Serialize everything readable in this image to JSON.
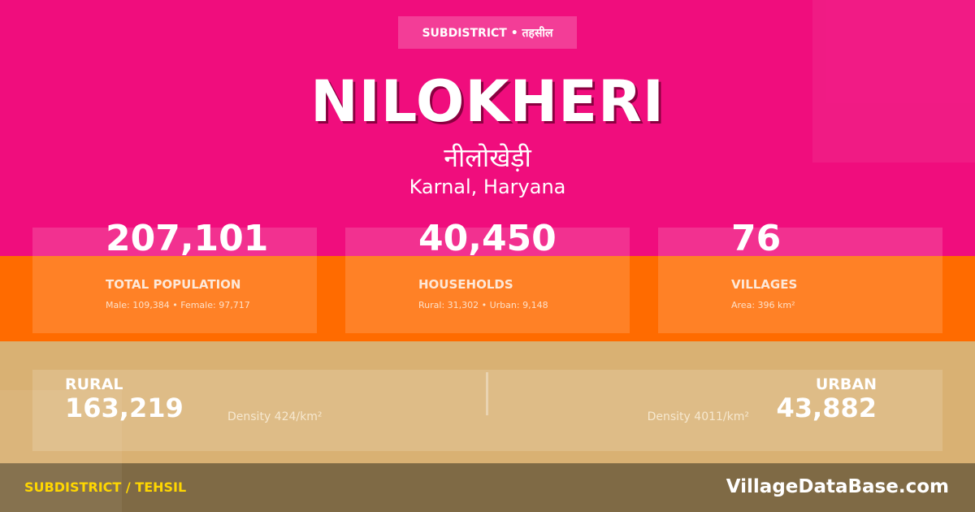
{
  "badge": "SUBDISTRICT • तहसील",
  "title": "NILOKHERI",
  "title_hindi": "नीलोखेड़ी",
  "location": "Karnal, Haryana",
  "stats": [
    {
      "value": "207,101",
      "label": "TOTAL POPULATION",
      "sub": "Male: 109,384 • Female: 97,717"
    },
    {
      "value": "40,450",
      "label": "HOUSEHOLDS",
      "sub": "Rural: 31,302 • Urban: 9,148"
    },
    {
      "value": "76",
      "label": "VILLAGES",
      "sub": "Area: 396 km²"
    }
  ],
  "rural": {
    "label": "RURAL",
    "value": "163,219",
    "density": "Density 424/km²"
  },
  "urban": {
    "label": "URBAN",
    "value": "43,882",
    "density": "Density 4011/km²"
  },
  "footer": {
    "left": "SUBDISTRICT / TEHSIL",
    "right": "VillageDataBase.com"
  },
  "colors": {
    "pink": "#F00D7D",
    "orange": "#FF6B00",
    "tan": "#D9B173",
    "footer": "#7F6A45",
    "accent": "#FFD700"
  }
}
